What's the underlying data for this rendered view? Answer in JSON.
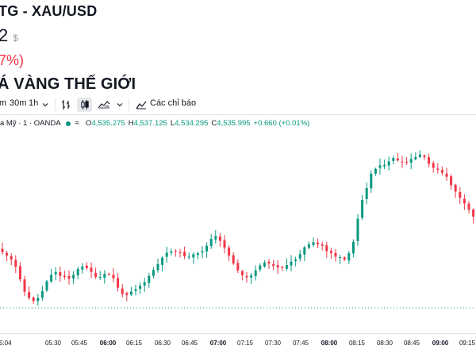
{
  "header": {
    "pair_title": "TG - XAU/USD",
    "price": "2",
    "price_unit": "$",
    "change_pct": "7%)",
    "page_heading": "Á VÀNG THẾ GIỚI"
  },
  "toolbar": {
    "intervals": [
      "m",
      "30m",
      "1h"
    ],
    "indicators_label": "Các chỉ báo",
    "icons": [
      "chevron-down-icon",
      "bar-style-icon",
      "candle-style-icon",
      "area-style-icon",
      "chevron-down-icon",
      "indicators-icon"
    ]
  },
  "legend": {
    "symbol": "a Mỹ · 1 · OANDA",
    "open_key": "O",
    "open": "4,535.275",
    "high_key": "H",
    "high": "4,537.125",
    "low_key": "L",
    "low": "4,534.295",
    "close_key": "C",
    "close": "4,535.995",
    "change": "+0.660 (+0.01%)"
  },
  "colors": {
    "up": "#089981",
    "down": "#f23645",
    "text": "#131722",
    "grid": "#e0e3eb"
  },
  "x_axis": {
    "ticks": [
      "5:04",
      "05:30",
      "05:45",
      "06:00",
      "06:15",
      "06:30",
      "06:45",
      "07:00",
      "07:15",
      "07:30",
      "07:45",
      "08:00",
      "08:15",
      "08:30",
      "08:45",
      "09:00",
      "09:15"
    ],
    "bold_ticks": [
      "06:00",
      "07:00",
      "08:00",
      "09:00"
    ]
  },
  "chart_data": {
    "type": "candlestick",
    "title": "",
    "xlabel": "",
    "ylabel": "",
    "closes": [
      4519.5,
      4518.8,
      4518.0,
      4516.5,
      4514.0,
      4511.5,
      4510.2,
      4509.6,
      4510.2,
      4511.6,
      4513.6,
      4514.9,
      4515.5,
      4514.7,
      4514.5,
      4514.1,
      4514.9,
      4516.1,
      4516.6,
      4516.3,
      4515.5,
      4514.5,
      4514.5,
      4515.1,
      4515.0,
      4514.2,
      4512.3,
      4511.0,
      4510.8,
      4511.5,
      4512.0,
      4512.7,
      4513.4,
      4514.7,
      4515.9,
      4517.1,
      4518.4,
      4519.4,
      4519.6,
      4519.7,
      4519.4,
      4518.7,
      4518.6,
      4519.1,
      4519.3,
      4519.7,
      4520.8,
      4522.2,
      4522.8,
      4521.8,
      4520.4,
      4518.8,
      4517.2,
      4515.8,
      4514.8,
      4514.4,
      4514.8,
      4515.8,
      4516.8,
      4517.4,
      4517.2,
      4516.7,
      4516.4,
      4516.3,
      4516.9,
      4517.6,
      4518.0,
      4519.1,
      4520.5,
      4521.1,
      4521.5,
      4521.1,
      4520.8,
      4519.7,
      4519.3,
      4518.6,
      4518.5,
      4518.0,
      4519.3,
      4521.6,
      4526.3,
      4530.1,
      4532.5,
      4535.4,
      4536.4,
      4537.1,
      4537.2,
      4537.9,
      4538.6,
      4538.1,
      4537.8,
      4537.8,
      4538.4,
      4538.8,
      4539.3,
      4538.8,
      4537.4,
      4536.6,
      4536.2,
      4535.6,
      4534.8,
      4533.1,
      4531.8,
      4530.5,
      4529.4,
      4528.1,
      4526.7
    ]
  }
}
